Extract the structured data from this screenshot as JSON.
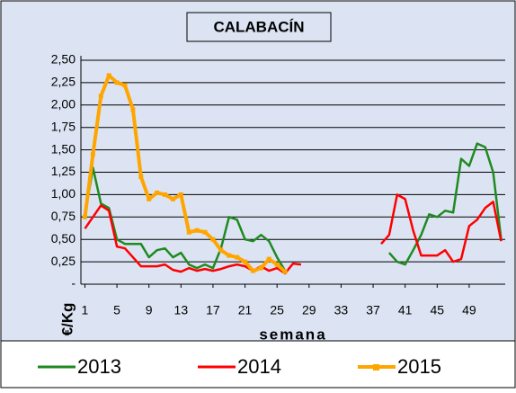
{
  "chart_data": {
    "type": "line",
    "title": "CALABACÍN",
    "ylabel": "€/Kg",
    "xlabel": "semana",
    "x": [
      1,
      2,
      3,
      4,
      5,
      6,
      7,
      8,
      9,
      10,
      11,
      12,
      13,
      14,
      15,
      16,
      17,
      18,
      19,
      20,
      21,
      22,
      23,
      24,
      25,
      26,
      27,
      28,
      29,
      30,
      31,
      32,
      33,
      34,
      35,
      36,
      37,
      38,
      39,
      40,
      41,
      42,
      43,
      44,
      45,
      46,
      47,
      48,
      49,
      50,
      51,
      52,
      53
    ],
    "xlim": [
      0.5,
      53.5
    ],
    "xticks": [
      1,
      5,
      9,
      13,
      17,
      21,
      25,
      29,
      33,
      37,
      41,
      45,
      49
    ],
    "ylim": [
      0,
      2.5
    ],
    "yticks": [
      {
        "value": 0,
        "label": "-"
      },
      {
        "value": 0.25,
        "label": "0,25"
      },
      {
        "value": 0.5,
        "label": "0,50"
      },
      {
        "value": 0.75,
        "label": "0,75"
      },
      {
        "value": 1,
        "label": "1,00"
      },
      {
        "value": 1.25,
        "label": "1,25"
      },
      {
        "value": 1.5,
        "label": "1,50"
      },
      {
        "value": 1.75,
        "label": "1,75"
      },
      {
        "value": 2,
        "label": "2,00"
      },
      {
        "value": 2.25,
        "label": "2,25"
      },
      {
        "value": 2.5,
        "label": "2,50"
      }
    ],
    "grid": true,
    "legend": "bottom",
    "series": [
      {
        "name": "2013",
        "color": "#1f8a1f",
        "values": [
          0.77,
          1.3,
          0.9,
          0.85,
          0.5,
          0.45,
          0.45,
          0.45,
          0.3,
          0.38,
          0.4,
          0.3,
          0.35,
          0.22,
          0.18,
          0.22,
          0.18,
          0.4,
          0.75,
          0.72,
          0.5,
          0.48,
          0.55,
          0.48,
          0.3,
          0.15,
          null,
          null,
          null,
          null,
          null,
          null,
          null,
          null,
          null,
          null,
          null,
          null,
          0.35,
          0.25,
          0.22,
          0.38,
          0.55,
          0.78,
          0.75,
          0.82,
          0.8,
          1.4,
          1.32,
          1.57,
          1.53,
          1.25,
          0.5
        ]
      },
      {
        "name": "2014",
        "color": "#ff0000",
        "values": [
          0.62,
          0.75,
          0.88,
          0.82,
          0.42,
          0.4,
          0.3,
          0.2,
          0.2,
          0.2,
          0.22,
          0.16,
          0.14,
          0.18,
          0.15,
          0.17,
          0.15,
          0.17,
          0.2,
          0.22,
          0.2,
          0.15,
          0.2,
          0.15,
          0.18,
          0.12,
          0.23,
          0.22,
          null,
          null,
          null,
          null,
          null,
          null,
          null,
          null,
          null,
          0.45,
          0.55,
          1.0,
          0.95,
          0.6,
          0.32,
          0.32,
          0.32,
          0.38,
          0.25,
          0.28,
          0.65,
          0.72,
          0.85,
          0.92,
          0.48
        ]
      },
      {
        "name": "2015",
        "color": "#ffa500",
        "marker": "square",
        "values": [
          0.75,
          1.45,
          2.1,
          2.33,
          2.25,
          2.22,
          1.95,
          1.2,
          0.95,
          1.02,
          1.0,
          0.95,
          1.0,
          0.58,
          0.6,
          0.58,
          0.5,
          0.38,
          0.32,
          0.3,
          0.25,
          0.15,
          0.18,
          0.28,
          0.22,
          0.14,
          null,
          null,
          null,
          null,
          null,
          null,
          null,
          null,
          null,
          null,
          null,
          null,
          null,
          null,
          null,
          null,
          null,
          null,
          null,
          null,
          null,
          null,
          null,
          null,
          null,
          null,
          null
        ]
      }
    ]
  }
}
